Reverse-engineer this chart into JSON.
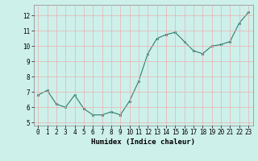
{
  "x": [
    0,
    1,
    2,
    3,
    4,
    5,
    6,
    7,
    8,
    9,
    10,
    11,
    12,
    13,
    14,
    15,
    16,
    17,
    18,
    19,
    20,
    21,
    22,
    23
  ],
  "y": [
    6.8,
    7.1,
    6.2,
    6.0,
    6.8,
    5.9,
    5.5,
    5.5,
    5.7,
    5.5,
    6.4,
    7.7,
    9.5,
    10.5,
    10.75,
    10.9,
    10.3,
    9.7,
    9.5,
    10.0,
    10.1,
    10.3,
    11.5,
    12.2
  ],
  "line_color": "#2e7d6e",
  "marker": "s",
  "marker_size": 2,
  "bg_color": "#cef0eb",
  "grid_color": "#e8b0b0",
  "xlabel": "Humidex (Indice chaleur)",
  "ylim": [
    4.8,
    12.7
  ],
  "xlim": [
    -0.5,
    23.5
  ],
  "yticks": [
    5,
    6,
    7,
    8,
    9,
    10,
    11,
    12
  ],
  "xticks": [
    0,
    1,
    2,
    3,
    4,
    5,
    6,
    7,
    8,
    9,
    10,
    11,
    12,
    13,
    14,
    15,
    16,
    17,
    18,
    19,
    20,
    21,
    22,
    23
  ],
  "tick_fontsize": 5.5,
  "label_fontsize": 6.5
}
